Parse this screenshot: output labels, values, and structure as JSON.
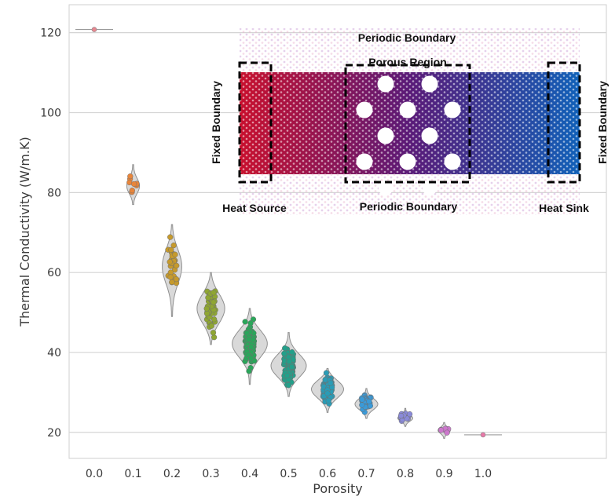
{
  "chart_data": {
    "type": "violin-strip",
    "xlabel": "Porosity",
    "ylabel": "Thermal Conductivity (W/m.K)",
    "ylim": [
      13.5,
      127
    ],
    "yticks": [
      20,
      40,
      60,
      80,
      100,
      120
    ],
    "grid": "horizontal",
    "categories": [
      "0.0",
      "0.1",
      "0.2",
      "0.3",
      "0.4",
      "0.5",
      "0.6",
      "0.7",
      "0.8",
      "0.9",
      "1.0"
    ],
    "groups": [
      {
        "porosity": "0.0",
        "color": "#e8868f",
        "mean": 120.8,
        "spread": 0.2,
        "count": 1,
        "violin_range": [
          120.7,
          120.9
        ]
      },
      {
        "porosity": "0.1",
        "color": "#e8853a",
        "mean": 81.5,
        "spread": 2.0,
        "count": 8,
        "violin_range": [
          77.0,
          87.0
        ]
      },
      {
        "porosity": "0.2",
        "color": "#c69a2c",
        "mean": 62.0,
        "spread": 4.5,
        "count": 30,
        "violin_range": [
          49.0,
          72.0
        ]
      },
      {
        "porosity": "0.3",
        "color": "#8fa632",
        "mean": 51.0,
        "spread": 4.0,
        "count": 55,
        "violin_range": [
          42.0,
          60.0
        ]
      },
      {
        "porosity": "0.4",
        "color": "#2aa65a",
        "mean": 42.5,
        "spread": 3.5,
        "count": 90,
        "violin_range": [
          32.0,
          51.0
        ]
      },
      {
        "porosity": "0.5",
        "color": "#22a08a",
        "mean": 36.5,
        "spread": 3.0,
        "count": 90,
        "violin_range": [
          29.0,
          45.0
        ]
      },
      {
        "porosity": "0.6",
        "color": "#2a9cb6",
        "mean": 31.0,
        "spread": 2.5,
        "count": 70,
        "violin_range": [
          25.0,
          36.0
        ]
      },
      {
        "porosity": "0.7",
        "color": "#3a9ad8",
        "mean": 27.0,
        "spread": 1.5,
        "count": 40,
        "violin_range": [
          23.5,
          31.0
        ]
      },
      {
        "porosity": "0.8",
        "color": "#8a8ad8",
        "mean": 23.5,
        "spread": 0.8,
        "count": 15,
        "violin_range": [
          21.5,
          26.0
        ]
      },
      {
        "porosity": "0.9",
        "color": "#cc77cc",
        "mean": 20.5,
        "spread": 0.8,
        "count": 6,
        "violin_range": [
          18.5,
          22.5
        ]
      },
      {
        "porosity": "1.0",
        "color": "#e878a8",
        "mean": 19.4,
        "spread": 0.1,
        "count": 1,
        "violin_range": [
          19.3,
          19.5
        ]
      }
    ]
  },
  "inset": {
    "top_label": "Periodic Boundary",
    "bottom_label": "Periodic Boundary",
    "porous_label": "Porous Region",
    "left_boundary": "Fixed Boundary",
    "right_boundary": "Fixed Boundary",
    "heat_source": "Heat Source",
    "heat_sink": "Heat Sink",
    "gradient_hot": "#c8102e",
    "gradient_mid": "#5a1a78",
    "gradient_cold": "#1060b8"
  }
}
